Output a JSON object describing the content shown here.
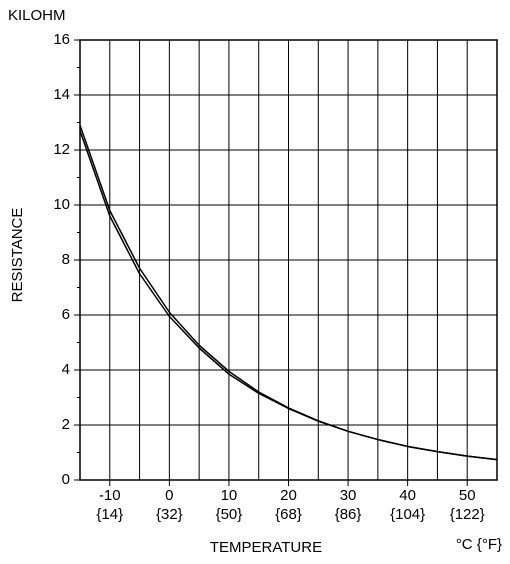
{
  "chart_data": {
    "type": "line",
    "y_unit_label": "KILOHM",
    "ylabel": "RESISTANCE",
    "xlabel": "TEMPERATURE",
    "x_unit_label": "°C {°F}",
    "x": [
      -15,
      -10,
      -5,
      0,
      5,
      10,
      15,
      20,
      25,
      30,
      35,
      40,
      45,
      50,
      55
    ],
    "series": [
      {
        "color": "#000000",
        "values": [
          12.9,
          9.8,
          7.7,
          6.1,
          4.9,
          3.95,
          3.2,
          2.62,
          2.15,
          1.77,
          1.47,
          1.22,
          1.03,
          0.87,
          0.74
        ]
      },
      {
        "color": "#000000",
        "values": [
          12.7,
          9.6,
          7.5,
          5.95,
          4.8,
          3.85,
          3.15,
          2.6,
          2.14,
          1.77,
          1.47,
          1.22,
          1.03,
          0.87,
          0.74
        ]
      }
    ],
    "xlim": [
      -15,
      55
    ],
    "ylim": [
      0,
      16
    ],
    "xticks": [
      -10,
      0,
      10,
      20,
      30,
      40,
      50
    ],
    "xtick_sublabels": [
      "{14}",
      "{32}",
      "{50}",
      "{68}",
      "{86}",
      "{104}",
      "{122}"
    ],
    "x_minor_ticks": [
      -15,
      -5,
      5,
      15,
      25,
      35,
      45,
      55
    ],
    "yticks": [
      0,
      2,
      4,
      6,
      8,
      10,
      12,
      14,
      16
    ],
    "y_minor_ticks": [
      1,
      3,
      5,
      7,
      9,
      11,
      13,
      15
    ],
    "grid": true
  }
}
